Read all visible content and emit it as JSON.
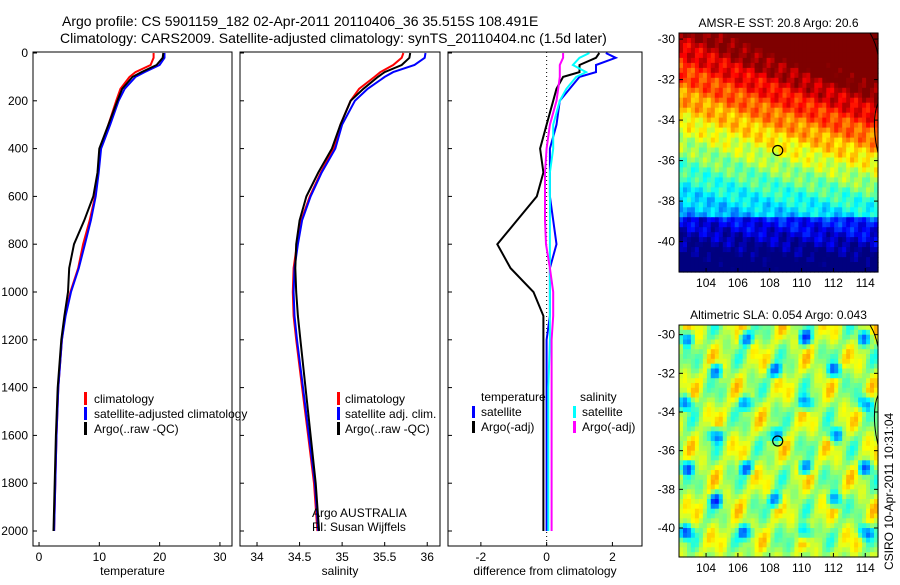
{
  "title": {
    "line1": "Argo profile: CS 5901159_182 02-Apr-2011 20110406_36 35.515S 108.491E",
    "line2": "Climatology: CARS2009. Satellite-adjusted climatology: synTS_20110404.nc (1.5d later)"
  },
  "side_text": "CSIRO 10-Apr-2011 10:31:04",
  "colors": {
    "climatology": "#ff0000",
    "satellite": "#0000ff",
    "argo": "#000000",
    "sal_satellite": "#00ffff",
    "sal_argo": "#ff00ff"
  },
  "chart_data": [
    {
      "type": "line",
      "xlabel": "temperature",
      "ylabel": "",
      "xlim": [
        -1,
        32
      ],
      "ylim": [
        2050,
        0
      ],
      "xticks": [
        0,
        10,
        20,
        30
      ],
      "yticks": [
        0,
        200,
        400,
        600,
        800,
        1000,
        1200,
        1400,
        1600,
        1800,
        2000
      ],
      "depth": [
        0,
        20,
        50,
        80,
        100,
        150,
        200,
        300,
        400,
        500,
        600,
        700,
        800,
        900,
        1000,
        1100,
        1200,
        1400,
        1600,
        1800,
        2000
      ],
      "series": [
        {
          "name": "climatology",
          "color": "#ff0000",
          "values": [
            19,
            19,
            18.5,
            16,
            15,
            13.5,
            12.8,
            11.5,
            10.2,
            9.8,
            9.3,
            8.4,
            7.3,
            6.5,
            5.2,
            4.3,
            3.8,
            3.2,
            2.9,
            2.7,
            2.5
          ]
        },
        {
          "name": "satellite-adjusted climatology",
          "color": "#0000ff",
          "values": [
            20.8,
            20.8,
            20,
            17.5,
            16,
            14.2,
            13.2,
            11.8,
            10.3,
            9.9,
            9.4,
            8.6,
            7.6,
            6.6,
            5.3,
            4.4,
            3.8,
            3.2,
            2.9,
            2.7,
            2.5
          ]
        },
        {
          "name": "Argo(..raw -QC)",
          "color": "#000000",
          "values": [
            20.6,
            20.5,
            19.5,
            17,
            15.5,
            13.8,
            13,
            11.5,
            10,
            9.7,
            9,
            7.5,
            5.8,
            5,
            4.8,
            4.2,
            3.7,
            3.1,
            2.8,
            2.6,
            2.4
          ]
        }
      ],
      "legend": [
        "climatology",
        "satellite-adjusted climatology",
        "Argo(..raw -QC)"
      ]
    },
    {
      "type": "line",
      "xlabel": "salinity",
      "xlim": [
        33.8,
        36.15
      ],
      "ylim": [
        2050,
        0
      ],
      "xticks": [
        34,
        34.5,
        35,
        35.5,
        36
      ],
      "depth": [
        0,
        20,
        50,
        80,
        100,
        150,
        200,
        300,
        400,
        500,
        600,
        700,
        800,
        900,
        1000,
        1100,
        1200,
        1400,
        1600,
        1800,
        2000
      ],
      "series": [
        {
          "name": "climatology",
          "color": "#ff0000",
          "values": [
            35.72,
            35.7,
            35.6,
            35.45,
            35.38,
            35.2,
            35.1,
            34.98,
            34.9,
            34.75,
            34.62,
            34.52,
            34.47,
            34.43,
            34.42,
            34.43,
            34.46,
            34.53,
            34.6,
            34.67,
            34.71
          ]
        },
        {
          "name": "satellite adj. clim.",
          "color": "#0000ff",
          "values": [
            35.98,
            35.97,
            35.85,
            35.6,
            35.5,
            35.3,
            35.15,
            35.0,
            34.92,
            34.76,
            34.63,
            34.53,
            34.48,
            34.44,
            34.43,
            34.44,
            34.47,
            34.54,
            34.61,
            34.68,
            34.72
          ]
        },
        {
          "name": "Argo(..raw -QC)",
          "color": "#000000",
          "values": [
            35.8,
            35.79,
            35.7,
            35.5,
            35.42,
            35.25,
            35.1,
            34.98,
            34.88,
            34.72,
            34.58,
            34.5,
            34.46,
            34.45,
            34.46,
            34.48,
            34.51,
            34.57,
            34.63,
            34.69,
            34.73
          ]
        }
      ],
      "legend": [
        "climatology",
        "satellite adj. clim.",
        "Argo(..raw -QC)"
      ],
      "annotation": [
        "Argo AUSTRALIA",
        "PI: Susan Wijffels"
      ]
    },
    {
      "type": "line",
      "xlabel": "difference from climatology",
      "xlim": [
        -3,
        2.9
      ],
      "ylim": [
        2050,
        0
      ],
      "xticks": [
        -2,
        0,
        2
      ],
      "depth": [
        0,
        20,
        50,
        80,
        100,
        150,
        200,
        300,
        400,
        500,
        600,
        700,
        800,
        900,
        1000,
        1100,
        1200,
        1400,
        1600,
        1800,
        2000
      ],
      "series": [
        {
          "name": "temperature satellite",
          "color": "#0000ff",
          "values": [
            1.8,
            2.1,
            1.5,
            1.5,
            1.0,
            0.7,
            0.4,
            0.3,
            0.1,
            0.1,
            0.1,
            0.2,
            0.3,
            0.1,
            0.1,
            0.1,
            0,
            0,
            0,
            0,
            0
          ]
        },
        {
          "name": "temperature Argo(-adj)",
          "color": "#000000",
          "values": [
            1.6,
            1.5,
            1.0,
            1.0,
            0.5,
            0.3,
            0.2,
            0,
            -0.2,
            -0.1,
            -0.3,
            -0.9,
            -1.5,
            -1.1,
            -0.4,
            -0.1,
            -0.1,
            -0.1,
            -0.1,
            -0.1,
            -0.1
          ]
        },
        {
          "name": "salinity satellite",
          "color": "#00ffff",
          "values": [
            1.3,
            1.0,
            0.8,
            1.2,
            0.9,
            0.6,
            0.4,
            0.2,
            0.2,
            0.1,
            0.1,
            0.1,
            0.1,
            0.1,
            0.1,
            0.1,
            0.1,
            0.05,
            0.05,
            0.05,
            0.05
          ]
        },
        {
          "name": "salinity Argo(-adj)",
          "color": "#ff00ff",
          "values": [
            0.5,
            0.5,
            0.4,
            0.4,
            0.4,
            0.35,
            0.3,
            0.1,
            0,
            -0.05,
            -0.05,
            -0.05,
            -0.02,
            0.1,
            0.2,
            0.2,
            0.15,
            0.15,
            0.15,
            0.15,
            0.15
          ]
        }
      ],
      "legend": {
        "temperature_header": "temperature",
        "salinity_header": "salinity",
        "items": [
          "satellite",
          "Argo(-adj)",
          "satellite",
          "Argo(-adj)"
        ]
      }
    },
    {
      "type": "heatmap",
      "title": "AMSR-E SST: 20.8 Argo: 20.6",
      "xlim": [
        102.3,
        114.8
      ],
      "ylim": [
        -41.5,
        -29.7
      ],
      "xticks": [
        104,
        106,
        108,
        110,
        112,
        114
      ],
      "yticks": [
        -30,
        -32,
        -34,
        -36,
        -38,
        -40
      ],
      "argo_position": [
        108.5,
        -35.5
      ]
    },
    {
      "type": "heatmap",
      "title": "Altimetric SLA: 0.054 Argo: 0.043",
      "xlim": [
        102.3,
        114.8
      ],
      "ylim": [
        -41.5,
        -29.5
      ],
      "xticks": [
        104,
        106,
        108,
        110,
        112,
        114
      ],
      "yticks": [
        -30,
        -32,
        -34,
        -36,
        -38,
        -40
      ],
      "argo_position": [
        108.5,
        -35.5
      ]
    }
  ]
}
